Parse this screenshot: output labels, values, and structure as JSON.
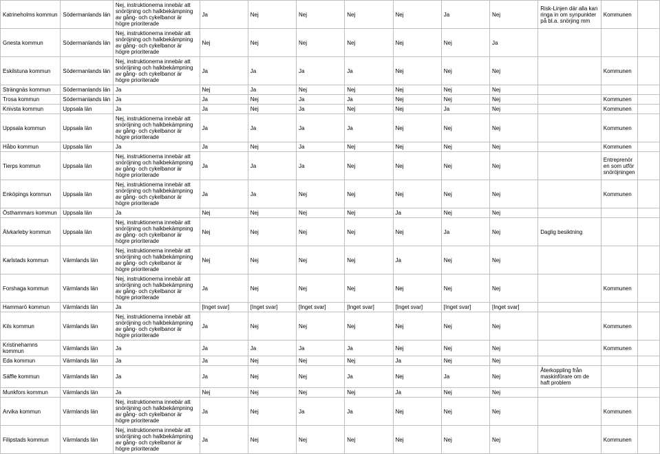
{
  "rows": [
    {
      "kommun": "Katrineholms kommun",
      "lan": "Södermanlands län",
      "c2": "Nej, instruktionerna innebär att snöröjning och halkbekämpning av gång- och cykelbanor är högre prioriterade",
      "c3": "Ja",
      "c4": "Nej",
      "c5": "Nej",
      "c6": "Nej",
      "c7": "Nej",
      "c8": "Ja",
      "c9": "Nej",
      "c10": "Risk-Linjen där alla kan ringa in om synpunkter på bl.a. snörjing mm",
      "c11": "Kommunen",
      "c12": ""
    },
    {
      "kommun": "Gnesta kommun",
      "lan": "Södermanlands län",
      "c2": "Nej, instruktionerna innebär att snöröjning och halkbekämpning av gång- och cykelbanor är högre prioriterade",
      "c3": "Nej",
      "c4": "Nej",
      "c5": "Nej",
      "c6": "Nej",
      "c7": "Nej",
      "c8": "Nej",
      "c9": "Ja",
      "c10": "",
      "c11": "",
      "c12": ""
    },
    {
      "kommun": "Eskilstuna kommun",
      "lan": "Södermanlands län",
      "c2": "Nej, instruktionerna innebär att snöröjning och halkbekämpning av gång- och cykelbanor är högre prioriterade",
      "c3": "Ja",
      "c4": "Ja",
      "c5": "Ja",
      "c6": "Ja",
      "c7": "Nej",
      "c8": "Nej",
      "c9": "Nej",
      "c10": "",
      "c11": "Kommunen",
      "c12": ""
    },
    {
      "kommun": "Strängnäs kommun",
      "lan": "Södermanlands län",
      "c2": "Ja",
      "c3": "Nej",
      "c4": "Ja",
      "c5": "Nej",
      "c6": "Nej",
      "c7": "Nej",
      "c8": "Nej",
      "c9": "Nej",
      "c10": "",
      "c11": "",
      "c12": ""
    },
    {
      "kommun": "Trosa kommun",
      "lan": "Södermanlands län",
      "c2": "Ja",
      "c3": "Ja",
      "c4": "Nej",
      "c5": "Ja",
      "c6": "Ja",
      "c7": "Nej",
      "c8": "Nej",
      "c9": "Nej",
      "c10": "",
      "c11": "Kommunen",
      "c12": ""
    },
    {
      "kommun": "Knivsta kommun",
      "lan": "Uppsala län",
      "c2": "Ja",
      "c3": "Ja",
      "c4": "Nej",
      "c5": "Ja",
      "c6": "Nej",
      "c7": "Nej",
      "c8": "Ja",
      "c9": "Nej",
      "c10": "",
      "c11": "Kommunen",
      "c12": ""
    },
    {
      "kommun": "Uppsala kommun",
      "lan": "Uppsala län",
      "c2": "Nej, instruktionerna innebär att snöröjning och halkbekämpning av gång- och cykelbanor är högre prioriterade",
      "c3": "Ja",
      "c4": "Ja",
      "c5": "Ja",
      "c6": "Ja",
      "c7": "Nej",
      "c8": "Nej",
      "c9": "Nej",
      "c10": "",
      "c11": "Kommunen",
      "c12": ""
    },
    {
      "kommun": "Håbo kommun",
      "lan": "Uppsala län",
      "c2": "Ja",
      "c3": "Ja",
      "c4": "Nej",
      "c5": "Ja",
      "c6": "Nej",
      "c7": "Nej",
      "c8": "Nej",
      "c9": "Nej",
      "c10": "",
      "c11": "Kommunen",
      "c12": ""
    },
    {
      "kommun": "Tierps kommun",
      "lan": "Uppsala län",
      "c2": "Nej, instruktionerna innebär att snöröjning och halkbekämpning av gång- och cykelbanor är högre prioriterade",
      "c3": "Ja",
      "c4": "Ja",
      "c5": "Ja",
      "c6": "Nej",
      "c7": "Nej",
      "c8": "Nej",
      "c9": "Nej",
      "c10": "",
      "c11": "Entreprenören som utför snöröjningen",
      "c12": ""
    },
    {
      "kommun": "Enköpings kommun",
      "lan": "Uppsala län",
      "c2": "Nej, instruktionerna innebär att snöröjning och halkbekämpning av gång- och cykelbanor är högre prioriterade",
      "c3": "Ja",
      "c4": "Ja",
      "c5": "Nej",
      "c6": "Nej",
      "c7": "Nej",
      "c8": "Nej",
      "c9": "Nej",
      "c10": "",
      "c11": "Kommunen",
      "c12": ""
    },
    {
      "kommun": "Östhammars kommun",
      "lan": "Uppsala län",
      "c2": "Ja",
      "c3": "Nej",
      "c4": "Nej",
      "c5": "Nej",
      "c6": "Nej",
      "c7": "Ja",
      "c8": "Nej",
      "c9": "Nej",
      "c10": "",
      "c11": "",
      "c12": ""
    },
    {
      "kommun": "Älvkarleby kommun",
      "lan": "Uppsala län",
      "c2": "Nej, instruktionerna innebär att snöröjning och halkbekämpning av gång- och cykelbanor är högre prioriterade",
      "c3": "Nej",
      "c4": "Nej",
      "c5": "Nej",
      "c6": "Nej",
      "c7": "Nej",
      "c8": "Ja",
      "c9": "Nej",
      "c10": "Daglig besiktning",
      "c11": "",
      "c12": ""
    },
    {
      "kommun": "Karlstads kommun",
      "lan": "Värmlands län",
      "c2": "Nej, instruktionerna innebär att snöröjning och halkbekämpning av gång- och cykelbanor är högre prioriterade",
      "c3": "Nej",
      "c4": "Nej",
      "c5": "Nej",
      "c6": "Nej",
      "c7": "Ja",
      "c8": "Nej",
      "c9": "Nej",
      "c10": "",
      "c11": "",
      "c12": ""
    },
    {
      "kommun": "Forshaga kommun",
      "lan": "Värmlands län",
      "c2": "Nej, instruktionerna innebär att snöröjning och halkbekämpning av gång- och cykelbanor är högre prioriterade",
      "c3": "Ja",
      "c4": "Nej",
      "c5": "Nej",
      "c6": "Nej",
      "c7": "Nej",
      "c8": "Nej",
      "c9": "Nej",
      "c10": "",
      "c11": "Kommunen",
      "c12": ""
    },
    {
      "kommun": "Hammarö kommun",
      "lan": "Värmlands län",
      "c2": "Ja",
      "c3": "[Inget svar]",
      "c4": "[Inget svar]",
      "c5": "[Inget svar]",
      "c6": "[Inget svar]",
      "c7": "[Inget svar]",
      "c8": "[Inget svar]",
      "c9": "[Inget svar]",
      "c10": "",
      "c11": "",
      "c12": ""
    },
    {
      "kommun": "Kils kommun",
      "lan": "Värmlands län",
      "c2": "Nej, instruktionerna innebär att snöröjning och halkbekämpning av gång- och cykelbanor är högre prioriterade",
      "c3": "Ja",
      "c4": "Nej",
      "c5": "Nej",
      "c6": "Nej",
      "c7": "Nej",
      "c8": "Nej",
      "c9": "Nej",
      "c10": "",
      "c11": "Kommunen",
      "c12": ""
    },
    {
      "kommun": "Kristinehamns kommun",
      "lan": "Värmlands län",
      "c2": "Ja",
      "c3": "Ja",
      "c4": "Ja",
      "c5": "Ja",
      "c6": "Ja",
      "c7": "Nej",
      "c8": "Nej",
      "c9": "Nej",
      "c10": "",
      "c11": "Kommunen",
      "c12": ""
    },
    {
      "kommun": "Eda kommun",
      "lan": "Värmlands län",
      "c2": "Ja",
      "c3": "Ja",
      "c4": "Nej",
      "c5": "Nej",
      "c6": "Nej",
      "c7": "Ja",
      "c8": "Nej",
      "c9": "Nej",
      "c10": "",
      "c11": "",
      "c12": ""
    },
    {
      "kommun": "Säffle kommun",
      "lan": "Värmlands län",
      "c2": "Ja",
      "c3": "Ja",
      "c4": "Nej",
      "c5": "Nej",
      "c6": "Ja",
      "c7": "Nej",
      "c8": "Ja",
      "c9": "Nej",
      "c10": "Återkoppling från maskinförare om de haft problem",
      "c11": "",
      "c12": ""
    },
    {
      "kommun": "Munkfors kommun",
      "lan": "Värmlands län",
      "c2": "Ja",
      "c3": "Nej",
      "c4": "Nej",
      "c5": "Nej",
      "c6": "Nej",
      "c7": "Ja",
      "c8": "Nej",
      "c9": "Nej",
      "c10": "",
      "c11": "",
      "c12": ""
    },
    {
      "kommun": "Arvika kommun",
      "lan": "Värmlands län",
      "c2": "Nej, instruktionerna innebär att snöröjning och halkbekämpning av gång- och cykelbanor är högre prioriterade",
      "c3": "Ja",
      "c4": "Nej",
      "c5": "Ja",
      "c6": "Ja",
      "c7": "Nej",
      "c8": "Nej",
      "c9": "Nej",
      "c10": "",
      "c11": "Kommunen",
      "c12": ""
    },
    {
      "kommun": "Filipstads kommun",
      "lan": "Värmlands län",
      "c2": "Nej, instruktionerna innebär att snöröjning och halkbekämpning av gång- och cykelbanor är högre prioriterade",
      "c3": "Ja",
      "c4": "Nej",
      "c5": "Nej",
      "c6": "Nej",
      "c7": "Nej",
      "c8": "Nej",
      "c9": "Nej",
      "c10": "",
      "c11": "Kommunen",
      "c12": ""
    }
  ]
}
